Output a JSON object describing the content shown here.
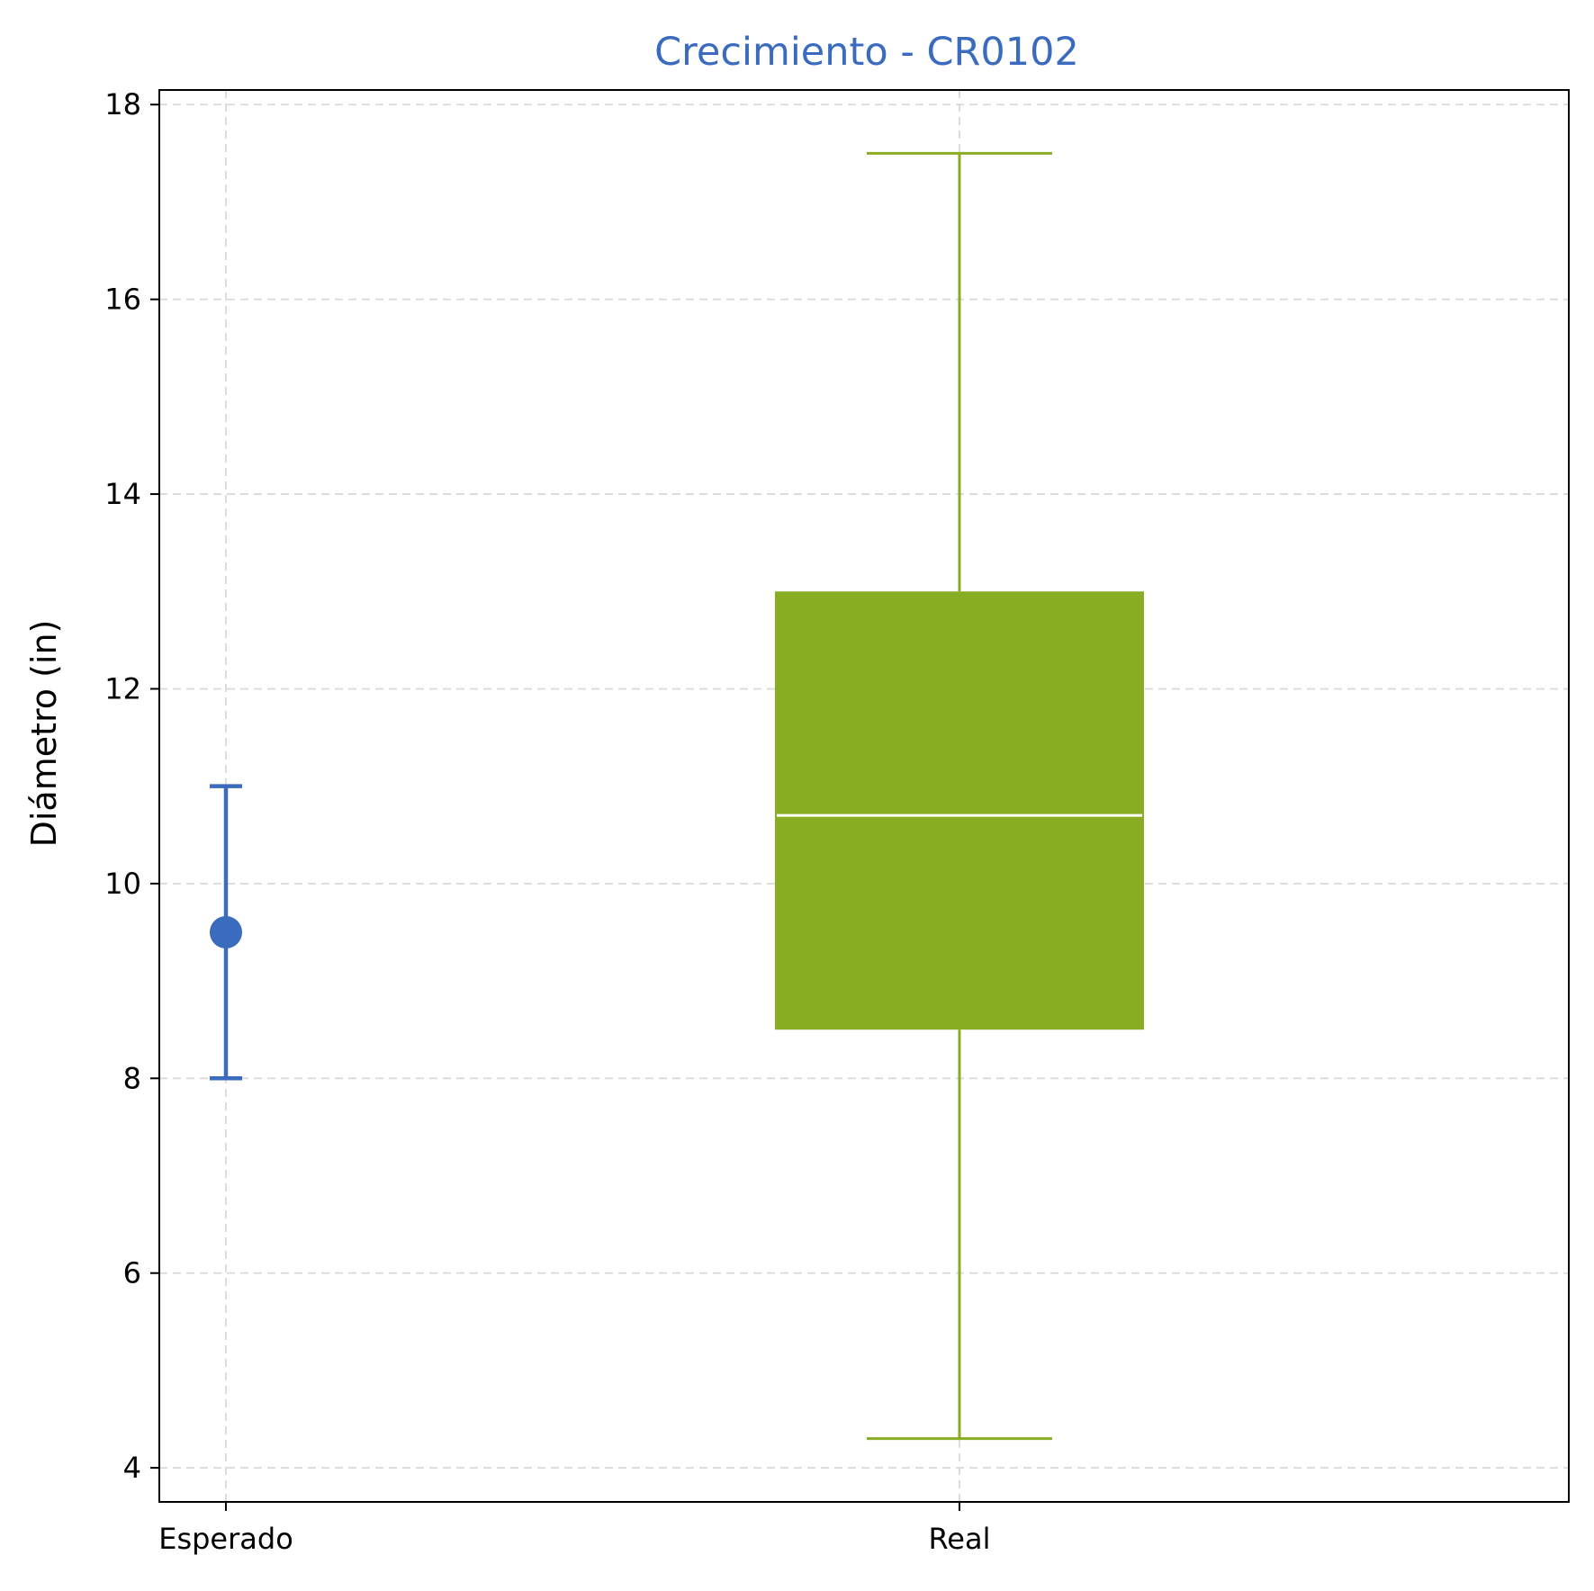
{
  "chart_data": {
    "type": "box",
    "title": "Crecimiento - CR0102",
    "xlabel": "",
    "ylabel": "Diámetro (in)",
    "ylim": [
      3.65,
      18.15
    ],
    "yticks": [
      4,
      6,
      8,
      10,
      12,
      14,
      16,
      18
    ],
    "categories": [
      "Esperado",
      "Real"
    ],
    "grid": true,
    "esperado": {
      "label": "Esperado",
      "value": 9.5,
      "err_low": 8.0,
      "err_high": 11.0,
      "color": "#3a6bbf"
    },
    "real": {
      "label": "Real",
      "whisker_low": 4.3,
      "q1": 8.5,
      "median": 10.7,
      "q3": 13.0,
      "whisker_high": 17.5,
      "color": "#88ad23",
      "median_color": "#ffffff"
    },
    "title_color": "#3a6bbf"
  }
}
